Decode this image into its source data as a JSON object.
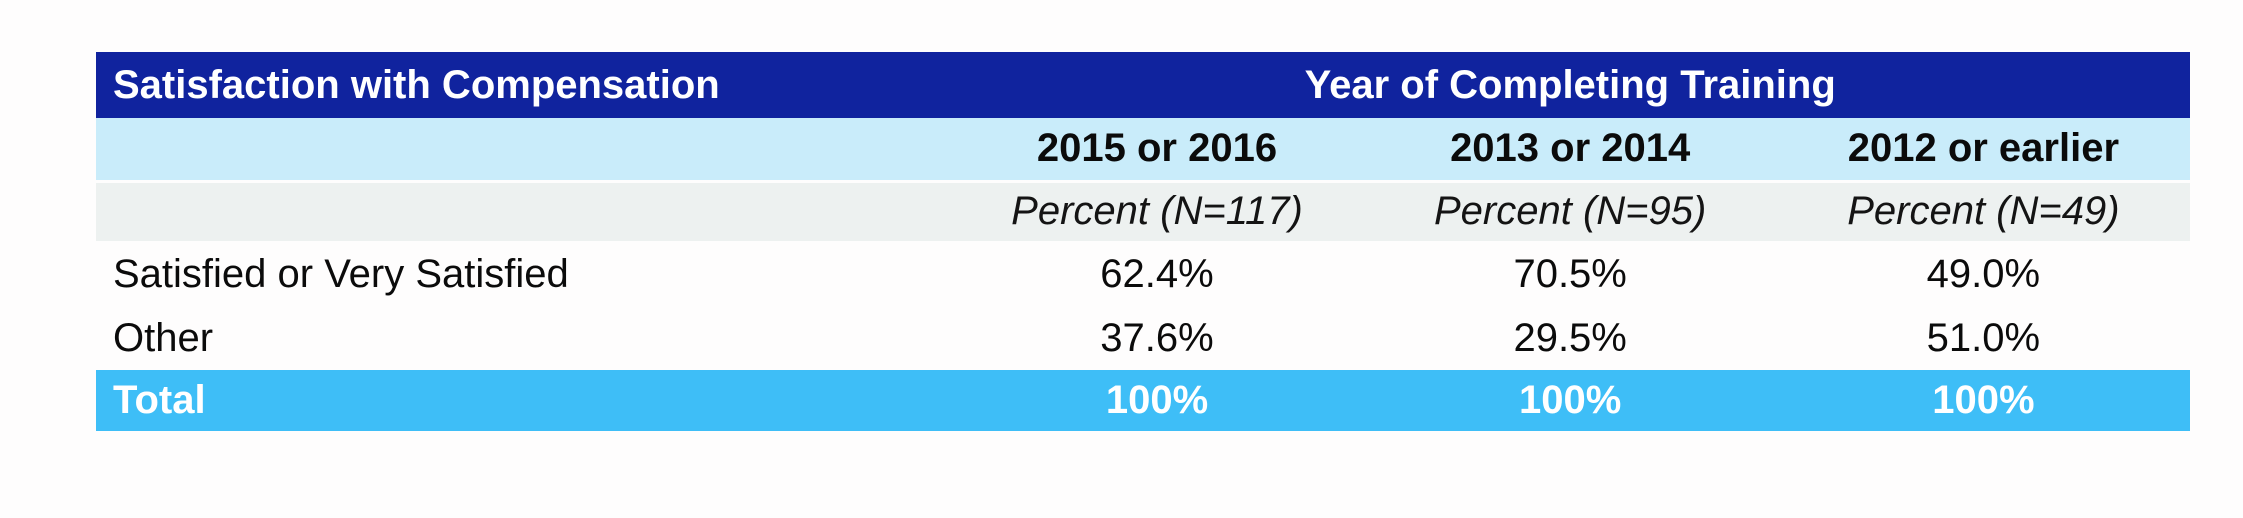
{
  "table": {
    "header": {
      "row_dimension_label": "Satisfaction with Compensation",
      "column_group_label": "Year of Completing Training"
    },
    "year_columns": [
      "2015 or 2016",
      "2013 or 2014",
      "2012 or earlier"
    ],
    "n_labels": [
      "Percent (N=117)",
      "Percent (N=95)",
      "Percent (N=49)"
    ],
    "rows": [
      {
        "label": "Satisfied or Very Satisfied",
        "values": [
          "62.4%",
          "70.5%",
          "49.0%"
        ]
      },
      {
        "label": "Other",
        "values": [
          "37.6%",
          "29.5%",
          "51.0%"
        ]
      }
    ],
    "total": {
      "label": "Total",
      "values": [
        "100%",
        "100%",
        "100%"
      ]
    }
  },
  "colors": {
    "header_bg": "#10239E",
    "year_row_bg": "#C9ECFA",
    "n_row_bg": "#EDF1F0",
    "total_row_bg": "#3EBEF7",
    "header_text": "#FFFFFF",
    "body_text": "#0B0B0B"
  },
  "chart_data": {
    "type": "table",
    "row_dimension": "Satisfaction with Compensation",
    "column_group": "Year of Completing Training",
    "columns": [
      "2015 or 2016",
      "2013 or 2014",
      "2012 or earlier"
    ],
    "sample_sizes": [
      117,
      95,
      49
    ],
    "value_unit": "percent",
    "rows": [
      {
        "label": "Satisfied or Very Satisfied",
        "values": [
          62.4,
          70.5,
          49.0
        ]
      },
      {
        "label": "Other",
        "values": [
          37.6,
          29.5,
          51.0
        ]
      },
      {
        "label": "Total",
        "values": [
          100,
          100,
          100
        ]
      }
    ]
  }
}
